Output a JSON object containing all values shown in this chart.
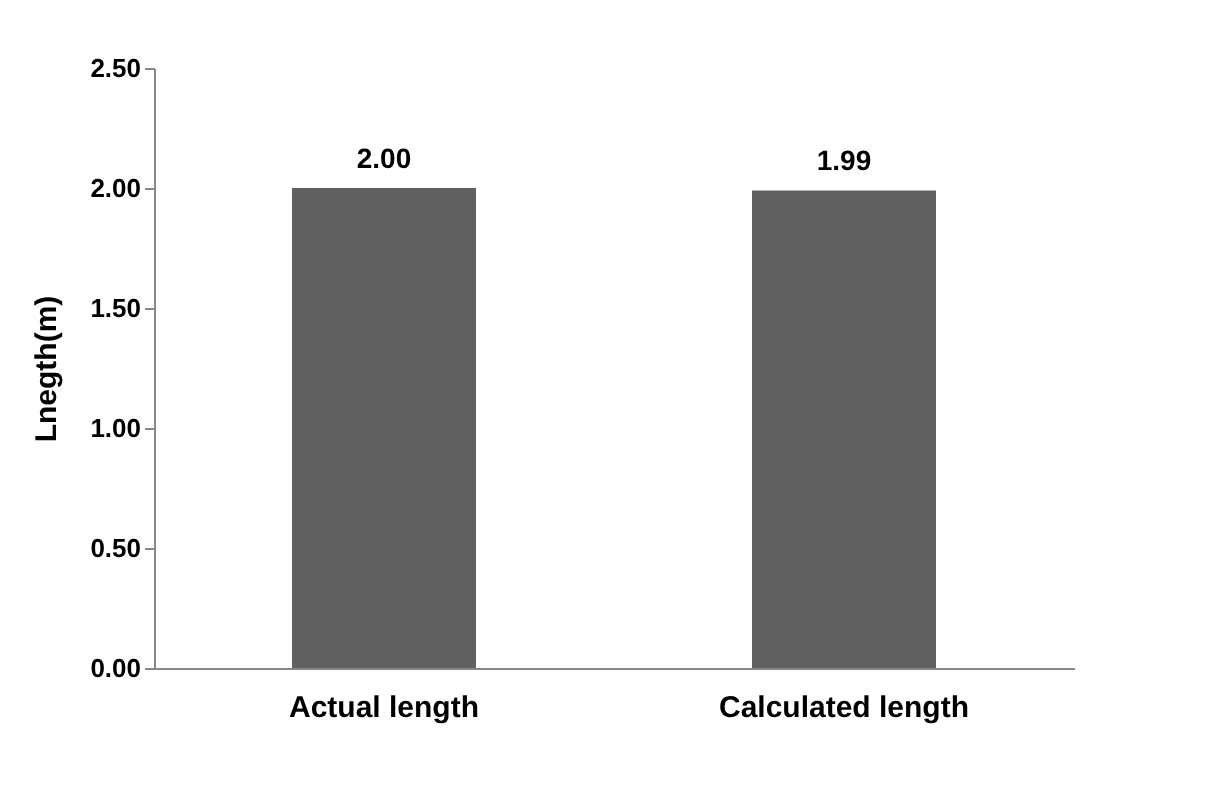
{
  "chart_data": {
    "type": "bar",
    "ylabel": "Lnegth(m)",
    "categories": [
      "Actual length",
      "Calculated length"
    ],
    "values": [
      2.0,
      1.99
    ],
    "color": "#606060",
    "value_labels": [
      "2.00",
      "1.99"
    ],
    "ylim": [
      0,
      2.5
    ],
    "yticks": [
      {
        "value": 0,
        "label": "0.00"
      },
      {
        "value": 0.5,
        "label": "0.50"
      },
      {
        "value": 1,
        "label": "1.00"
      },
      {
        "value": 1.5,
        "label": "1.50"
      },
      {
        "value": 2,
        "label": "2.00"
      },
      {
        "value": 2.5,
        "label": "2.50"
      }
    ],
    "grid": false
  }
}
